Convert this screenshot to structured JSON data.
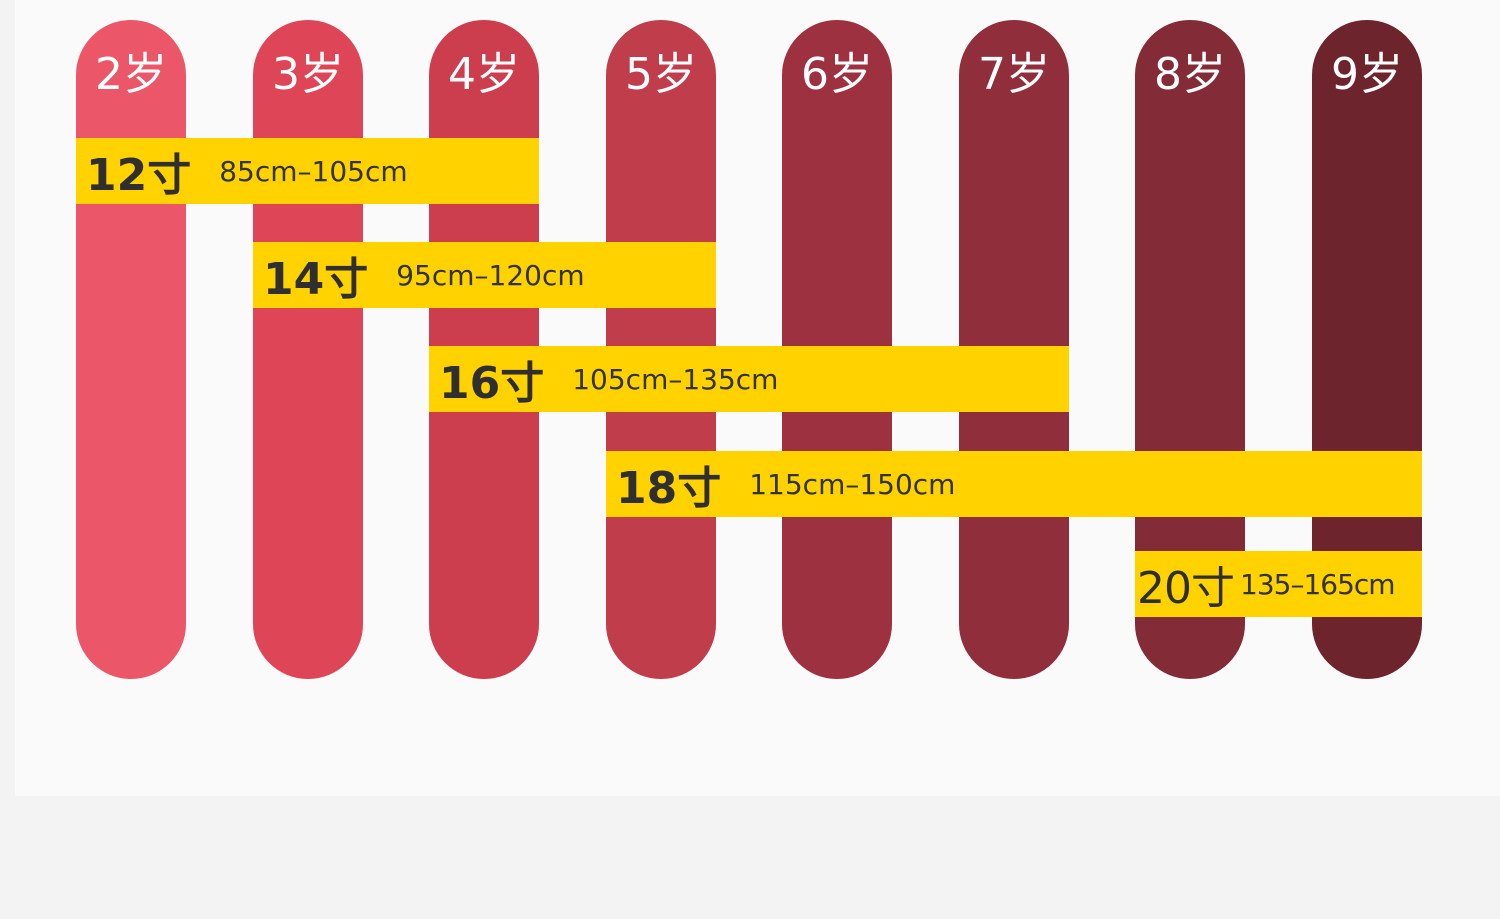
{
  "ages": [
    {
      "label": "2岁",
      "color": "#ec5669"
    },
    {
      "label": "3岁",
      "color": "#de4658"
    },
    {
      "label": "4岁",
      "color": "#cc3e4e"
    },
    {
      "label": "5岁",
      "color": "#c03d4c"
    },
    {
      "label": "6岁",
      "color": "#9e3140"
    },
    {
      "label": "7岁",
      "color": "#912e3b"
    },
    {
      "label": "8岁",
      "color": "#832b36"
    },
    {
      "label": "9岁",
      "color": "#6d242d"
    }
  ],
  "sizes": [
    {
      "name": "12寸",
      "range": "85cm–105cm",
      "ages": "2岁–4岁"
    },
    {
      "name": "14寸",
      "range": "95cm–120cm",
      "ages": "3岁–5岁"
    },
    {
      "name": "16寸",
      "range": "105cm–135cm",
      "ages": "4岁–7岁"
    },
    {
      "name": "18寸",
      "range": "115cm–150cm",
      "ages": "5岁–9岁"
    },
    {
      "name": "20寸",
      "range": "135–165cm",
      "ages": "8岁–9岁"
    }
  ],
  "colors": {
    "band": "#ffd200",
    "panel": "#fafafa",
    "background": "#f3f3f3"
  }
}
